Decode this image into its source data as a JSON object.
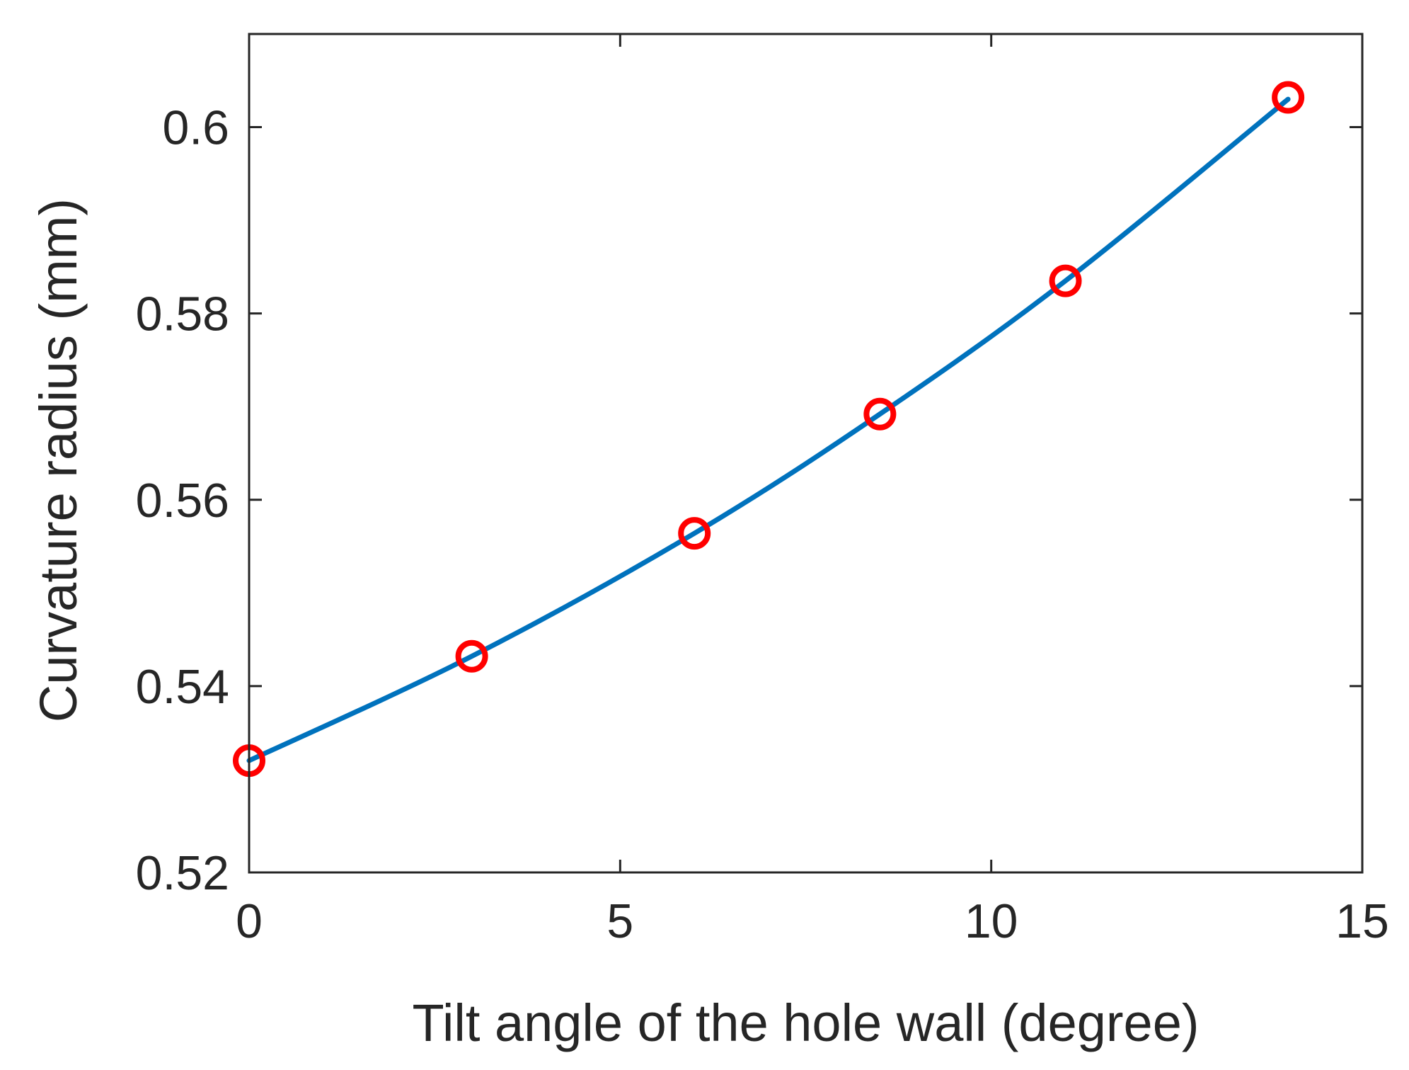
{
  "chart_data": {
    "type": "line",
    "title": "",
    "xlabel": "Tilt angle of the hole wall (degree)",
    "ylabel": "Curvature radius (mm)",
    "xlim": [
      0,
      15
    ],
    "ylim": [
      0.52,
      0.61
    ],
    "xticks": [
      0,
      5,
      10,
      15
    ],
    "xtick_labels": [
      "0",
      "5",
      "10",
      "15"
    ],
    "yticks": [
      0.52,
      0.54,
      0.56,
      0.58,
      0.6
    ],
    "ytick_labels": [
      "0.52",
      "0.54",
      "0.56",
      "0.58",
      "0.6"
    ],
    "grid": false,
    "legend": false,
    "series": [
      {
        "style": "line",
        "color": "#0072BD",
        "x": [
          0,
          3,
          6,
          8.5,
          11,
          14
        ],
        "y": [
          0.532,
          0.5432,
          0.5564,
          0.5692,
          0.5835,
          0.603
        ]
      },
      {
        "style": "markers",
        "marker": "circle-open",
        "color": "#FF0000",
        "x": [
          0,
          3,
          6,
          8.5,
          11,
          14
        ],
        "y": [
          0.532,
          0.5432,
          0.5564,
          0.5692,
          0.5835,
          0.6032
        ]
      }
    ]
  }
}
